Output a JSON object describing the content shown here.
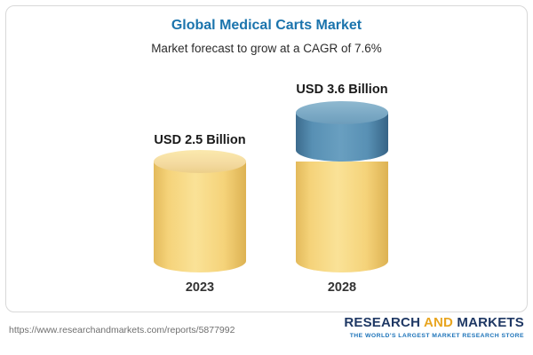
{
  "chart": {
    "title": "Global Medical Carts Market",
    "subtitle": "Market forecast to grow at a CAGR of 7.6%"
  },
  "chart_data": {
    "type": "bar",
    "categories": [
      "2023",
      "2028"
    ],
    "values": [
      2.5,
      3.6
    ],
    "unit": "USD Billion",
    "data_labels": [
      "USD 2.5 Billion",
      "USD 3.6 Billion"
    ],
    "title": "Global Medical Carts Market",
    "subtitle": "Market forecast to grow at a CAGR of 7.6%",
    "cagr": "7.6%",
    "ylim": [
      0,
      3.6
    ],
    "grid": false,
    "legend": false,
    "colors": {
      "bar_base": "#f5d37a",
      "bar_growth_segment": "#5890b4",
      "title": "#1b74ad"
    }
  },
  "footer": {
    "url": "https://www.researchandmarkets.com/reports/5877992",
    "logo": {
      "word1": "RESEARCH",
      "word2": "AND",
      "word3": "MARKETS",
      "tagline": "THE WORLD'S LARGEST MARKET RESEARCH STORE"
    }
  }
}
